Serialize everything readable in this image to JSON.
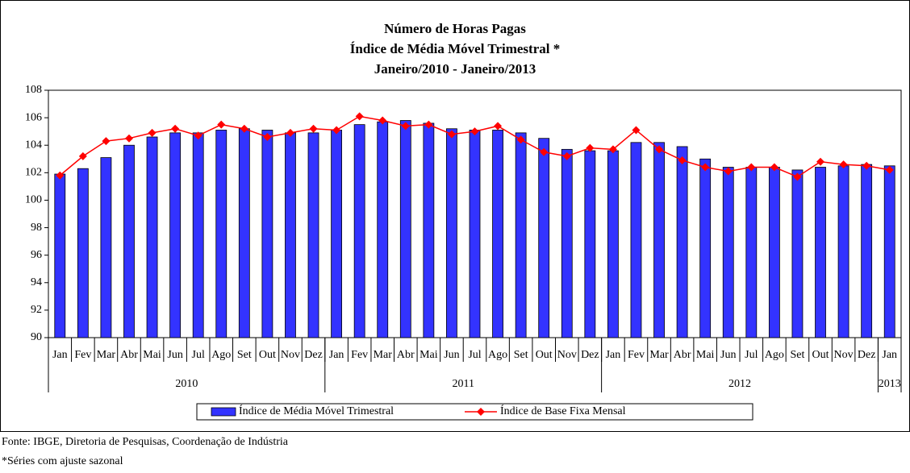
{
  "chart_data": {
    "type": "bar_line",
    "title": [
      "Número de Horas Pagas",
      "Índice de Média Móvel Trimestral *",
      "Janeiro/2010 - Janeiro/2013"
    ],
    "categories": [
      "Jan",
      "Fev",
      "Mar",
      "Abr",
      "Mai",
      "Jun",
      "Jul",
      "Ago",
      "Set",
      "Out",
      "Nov",
      "Dez",
      "Jan",
      "Fev",
      "Mar",
      "Abr",
      "Mai",
      "Jun",
      "Jul",
      "Ago",
      "Set",
      "Out",
      "Nov",
      "Dez",
      "Jan",
      "Fev",
      "Mar",
      "Abr",
      "Mai",
      "Jun",
      "Jul",
      "Ago",
      "Set",
      "Out",
      "Nov",
      "Dez",
      "Jan"
    ],
    "groups": [
      {
        "label": "2010",
        "span": 12
      },
      {
        "label": "2011",
        "span": 12
      },
      {
        "label": "2012",
        "span": 12
      },
      {
        "label": "2013",
        "span": 1
      }
    ],
    "series": [
      {
        "name": "Índice de Média Móvel Trimestral",
        "kind": "bar",
        "color": "#3333ff",
        "values": [
          101.9,
          102.3,
          103.1,
          104.0,
          104.6,
          104.9,
          104.9,
          105.1,
          105.2,
          105.1,
          104.9,
          104.9,
          105.1,
          105.5,
          105.7,
          105.8,
          105.6,
          105.2,
          105.1,
          105.1,
          104.9,
          104.5,
          103.7,
          103.6,
          103.6,
          104.2,
          104.2,
          103.9,
          103.0,
          102.4,
          102.4,
          102.4,
          102.2,
          102.4,
          102.5,
          102.6,
          102.5
        ]
      },
      {
        "name": "Índice de Base Fixa Mensal",
        "kind": "line",
        "color": "#ff0000",
        "values": [
          101.8,
          103.2,
          104.3,
          104.5,
          104.9,
          105.2,
          104.7,
          105.5,
          105.2,
          104.6,
          104.9,
          105.2,
          105.1,
          106.1,
          105.8,
          105.4,
          105.5,
          104.8,
          105.0,
          105.4,
          104.4,
          103.5,
          103.2,
          103.8,
          103.7,
          105.1,
          103.7,
          102.9,
          102.4,
          102.1,
          102.4,
          102.4,
          101.7,
          102.8,
          102.6,
          102.5,
          102.2
        ]
      }
    ],
    "ylim": [
      90,
      108
    ],
    "yticks": [
      90,
      92,
      94,
      96,
      98,
      100,
      102,
      104,
      106,
      108
    ],
    "notes": [
      "Fonte: IBGE, Diretoria de Pesquisas, Coordenação de Indústria",
      "*Séries com ajuste sazonal"
    ]
  }
}
